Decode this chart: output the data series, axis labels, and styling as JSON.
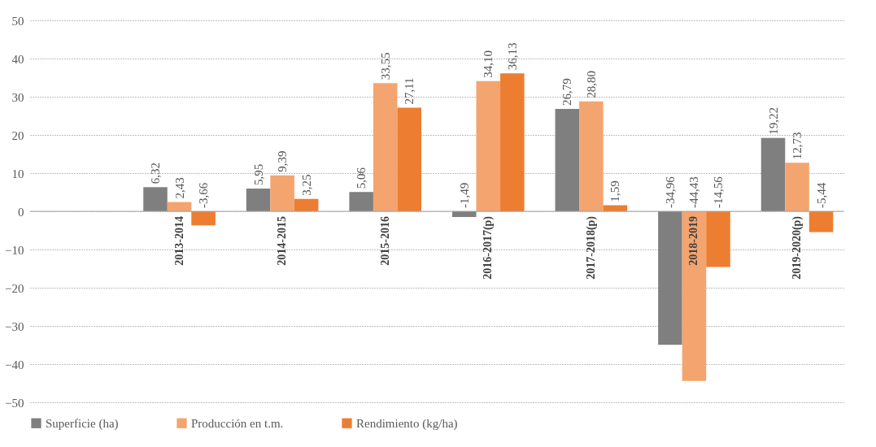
{
  "chart_data": {
    "type": "bar",
    "categories": [
      null,
      "2013-2014",
      "2014-2015",
      "2015-2016",
      "2016-2017(p)",
      "2017-2018(p)",
      "2018-2019",
      "2019-2020(p)"
    ],
    "series": [
      {
        "name": "Superficie (ha)",
        "color": "#7f7f7f",
        "values": [
          null,
          6.32,
          5.95,
          5.06,
          -1.49,
          26.79,
          -34.96,
          19.22
        ],
        "value_labels": [
          null,
          "6,32",
          "5,95",
          "5,06",
          "-1,49",
          "26,79",
          "-34,96",
          "19,22"
        ]
      },
      {
        "name": "Producción en t.m.",
        "color": "#f4a46f",
        "values": [
          null,
          2.43,
          9.39,
          33.55,
          34.1,
          28.8,
          -44.43,
          12.73
        ],
        "value_labels": [
          null,
          "2,43",
          "9,39",
          "33,55",
          "34,10",
          "28,80",
          "-44,43",
          "12,73"
        ]
      },
      {
        "name": "Rendimiento (kg/ha)",
        "color": "#ed7d31",
        "values": [
          null,
          -3.66,
          3.25,
          27.11,
          36.13,
          1.59,
          -14.56,
          -5.44
        ],
        "value_labels": [
          null,
          "-3,66",
          "3,25",
          "27,11",
          "36,13",
          "1,59",
          "-14,56",
          "-5,44"
        ]
      }
    ],
    "ylim": [
      -50,
      50
    ],
    "yticks": [
      -50,
      -40,
      -30,
      -20,
      -10,
      0,
      10,
      20,
      30,
      40,
      50
    ],
    "grid": "y",
    "legend": "bottom"
  }
}
